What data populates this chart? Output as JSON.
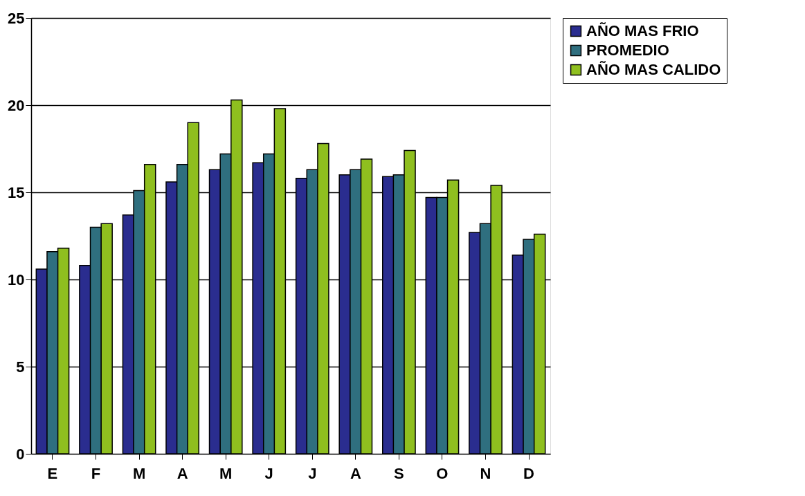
{
  "chart_data": {
    "type": "bar",
    "categories": [
      "E",
      "F",
      "M",
      "A",
      "M",
      "J",
      "J",
      "A",
      "S",
      "O",
      "N",
      "D"
    ],
    "series": [
      {
        "name": "AÑO MAS FRIO",
        "color": "#2a2d8f",
        "values": [
          10.6,
          10.8,
          13.7,
          15.6,
          16.3,
          16.7,
          15.8,
          16.0,
          15.9,
          14.7,
          12.7,
          11.4
        ]
      },
      {
        "name": "PROMEDIO",
        "color": "#2f6f7f",
        "values": [
          11.6,
          13.0,
          15.1,
          16.6,
          17.2,
          17.2,
          16.3,
          16.3,
          16.0,
          14.7,
          13.2,
          12.3
        ]
      },
      {
        "name": "AÑO MAS CALIDO",
        "color": "#8fbf1f",
        "values": [
          11.8,
          13.2,
          16.6,
          19.0,
          20.3,
          19.8,
          17.8,
          16.9,
          17.4,
          15.7,
          15.4,
          12.6
        ]
      }
    ],
    "ylim": [
      0,
      25
    ],
    "yticks": [
      0,
      5,
      10,
      15,
      20,
      25
    ],
    "grid": "y",
    "legend": "right"
  }
}
